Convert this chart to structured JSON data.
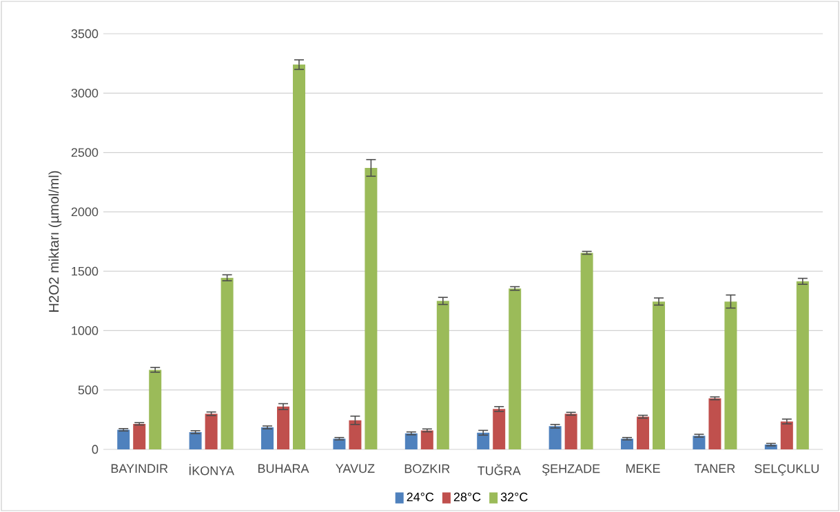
{
  "chart_data": {
    "type": "bar",
    "ylabel": "H2O2 miktarı (µmol/ml)",
    "categories": [
      "BAYINDIR",
      "İKONYA",
      "BUHARA",
      "YAVUZ",
      "BOZKIR",
      "TUĞRA",
      "ŞEHZADE",
      "MEKE",
      "TANER",
      "SELÇUKLU"
    ],
    "series": [
      {
        "name": "24°C",
        "color": "#4f81bd",
        "values": [
          165,
          145,
          185,
          90,
          135,
          140,
          195,
          90,
          115,
          40
        ],
        "errors": [
          10,
          12,
          12,
          10,
          12,
          20,
          15,
          10,
          12,
          10
        ]
      },
      {
        "name": "28°C",
        "color": "#c0504d",
        "values": [
          215,
          300,
          360,
          245,
          160,
          340,
          300,
          275,
          430,
          235
        ],
        "errors": [
          10,
          15,
          25,
          35,
          12,
          20,
          12,
          12,
          12,
          20
        ]
      },
      {
        "name": "32°C",
        "color": "#9bbb59",
        "values": [
          670,
          1445,
          3240,
          2370,
          1250,
          1355,
          1655,
          1245,
          1245,
          1415
        ],
        "errors": [
          20,
          25,
          40,
          70,
          30,
          15,
          12,
          30,
          55,
          25
        ]
      }
    ],
    "ylim": [
      0,
      3500
    ],
    "yticks": [
      0,
      500,
      1000,
      1500,
      2000,
      2500,
      3000,
      3500
    ],
    "grid": "y",
    "legend": "bottom"
  }
}
